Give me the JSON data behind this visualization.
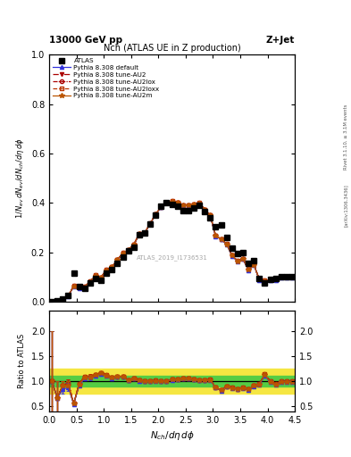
{
  "title": "Nch (ATLAS UE in Z production)",
  "top_left_label": "13000 GeV pp",
  "top_right_label": "Z+Jet",
  "right_label_main": "Rivet 3.1.10, ≥ 3.1M events",
  "right_label_arxiv": "[arXiv:1306.3436]",
  "watermark": "ATLAS_2019_I1736531",
  "xlabel": "$N_{ch}/d\\eta\\,d\\phi$",
  "ylabel_main": "$1/N_{ev}\\,dN_{ev}/dN_{ch}/d\\eta\\,d\\phi$",
  "ylabel_ratio": "Ratio to ATLAS",
  "atlas_x": [
    0.05,
    0.15,
    0.25,
    0.35,
    0.45,
    0.55,
    0.65,
    0.75,
    0.85,
    0.95,
    1.05,
    1.15,
    1.25,
    1.35,
    1.45,
    1.55,
    1.65,
    1.75,
    1.85,
    1.95,
    2.05,
    2.15,
    2.25,
    2.35,
    2.45,
    2.55,
    2.65,
    2.75,
    2.85,
    2.95,
    3.05,
    3.15,
    3.25,
    3.35,
    3.45,
    3.55,
    3.65,
    3.75,
    3.85,
    3.95,
    4.05,
    4.15,
    4.25,
    4.35,
    4.45
  ],
  "atlas_y": [
    0.001,
    0.003,
    0.012,
    0.025,
    0.115,
    0.06,
    0.055,
    0.075,
    0.095,
    0.085,
    0.115,
    0.13,
    0.155,
    0.18,
    0.205,
    0.22,
    0.27,
    0.28,
    0.315,
    0.35,
    0.385,
    0.4,
    0.395,
    0.385,
    0.37,
    0.37,
    0.38,
    0.39,
    0.365,
    0.34,
    0.305,
    0.31,
    0.26,
    0.215,
    0.195,
    0.2,
    0.155,
    0.165,
    0.095,
    0.075,
    0.09,
    0.095,
    0.1,
    0.1,
    0.1
  ],
  "atlas_yerr": [
    0.001,
    0.001,
    0.002,
    0.004,
    0.007,
    0.004,
    0.004,
    0.005,
    0.005,
    0.004,
    0.005,
    0.005,
    0.006,
    0.006,
    0.007,
    0.007,
    0.007,
    0.007,
    0.008,
    0.008,
    0.008,
    0.008,
    0.008,
    0.008,
    0.008,
    0.008,
    0.008,
    0.008,
    0.008,
    0.008,
    0.008,
    0.008,
    0.007,
    0.007,
    0.007,
    0.007,
    0.006,
    0.007,
    0.006,
    0.005,
    0.006,
    0.006,
    0.006,
    0.006,
    0.006
  ],
  "pd_x": [
    0.05,
    0.15,
    0.25,
    0.35,
    0.45,
    0.55,
    0.65,
    0.75,
    0.85,
    0.95,
    1.05,
    1.15,
    1.25,
    1.35,
    1.45,
    1.55,
    1.65,
    1.75,
    1.85,
    1.95,
    2.05,
    2.15,
    2.25,
    2.35,
    2.45,
    2.55,
    2.65,
    2.75,
    2.85,
    2.95,
    3.05,
    3.15,
    3.25,
    3.35,
    3.45,
    3.55,
    3.65,
    3.75,
    3.85,
    3.95,
    4.05,
    4.15,
    4.25,
    4.35,
    4.45
  ],
  "pd_y": [
    0.001,
    0.002,
    0.01,
    0.022,
    0.062,
    0.055,
    0.058,
    0.08,
    0.105,
    0.097,
    0.127,
    0.138,
    0.168,
    0.195,
    0.208,
    0.23,
    0.272,
    0.278,
    0.315,
    0.352,
    0.382,
    0.4,
    0.405,
    0.4,
    0.39,
    0.388,
    0.392,
    0.398,
    0.372,
    0.348,
    0.265,
    0.252,
    0.232,
    0.185,
    0.163,
    0.172,
    0.128,
    0.148,
    0.088,
    0.083,
    0.088,
    0.088,
    0.098,
    0.098,
    0.098
  ],
  "pd_yerr": [
    0.001,
    0.001,
    0.001,
    0.002,
    0.003,
    0.002,
    0.002,
    0.003,
    0.003,
    0.003,
    0.003,
    0.003,
    0.004,
    0.004,
    0.004,
    0.004,
    0.004,
    0.004,
    0.004,
    0.004,
    0.004,
    0.004,
    0.004,
    0.004,
    0.004,
    0.004,
    0.004,
    0.004,
    0.004,
    0.004,
    0.004,
    0.004,
    0.004,
    0.003,
    0.003,
    0.004,
    0.003,
    0.004,
    0.003,
    0.003,
    0.003,
    0.003,
    0.003,
    0.003,
    0.003
  ],
  "au2_x": [
    0.05,
    0.15,
    0.25,
    0.35,
    0.45,
    0.55,
    0.65,
    0.75,
    0.85,
    0.95,
    1.05,
    1.15,
    1.25,
    1.35,
    1.45,
    1.55,
    1.65,
    1.75,
    1.85,
    1.95,
    2.05,
    2.15,
    2.25,
    2.35,
    2.45,
    2.55,
    2.65,
    2.75,
    2.85,
    2.95,
    3.05,
    3.15,
    3.25,
    3.35,
    3.45,
    3.55,
    3.65,
    3.75,
    3.85,
    3.95,
    4.05,
    4.15,
    4.25,
    4.35,
    4.45
  ],
  "au2_y": [
    0.001,
    0.002,
    0.011,
    0.023,
    0.063,
    0.056,
    0.059,
    0.081,
    0.106,
    0.098,
    0.128,
    0.139,
    0.169,
    0.196,
    0.209,
    0.231,
    0.273,
    0.279,
    0.316,
    0.353,
    0.383,
    0.401,
    0.406,
    0.401,
    0.391,
    0.389,
    0.393,
    0.399,
    0.373,
    0.349,
    0.266,
    0.253,
    0.233,
    0.186,
    0.164,
    0.173,
    0.129,
    0.149,
    0.089,
    0.084,
    0.089,
    0.089,
    0.099,
    0.099,
    0.099
  ],
  "au2_yerr": [
    0.001,
    0.001,
    0.001,
    0.002,
    0.003,
    0.002,
    0.002,
    0.003,
    0.003,
    0.003,
    0.003,
    0.003,
    0.004,
    0.004,
    0.004,
    0.004,
    0.004,
    0.004,
    0.004,
    0.004,
    0.004,
    0.004,
    0.004,
    0.004,
    0.004,
    0.004,
    0.004,
    0.004,
    0.004,
    0.004,
    0.004,
    0.004,
    0.004,
    0.003,
    0.003,
    0.004,
    0.003,
    0.004,
    0.003,
    0.003,
    0.003,
    0.003,
    0.003,
    0.003,
    0.003
  ],
  "au2lox_x": [
    0.05,
    0.15,
    0.25,
    0.35,
    0.45,
    0.55,
    0.65,
    0.75,
    0.85,
    0.95,
    1.05,
    1.15,
    1.25,
    1.35,
    1.45,
    1.55,
    1.65,
    1.75,
    1.85,
    1.95,
    2.05,
    2.15,
    2.25,
    2.35,
    2.45,
    2.55,
    2.65,
    2.75,
    2.85,
    2.95,
    3.05,
    3.15,
    3.25,
    3.35,
    3.45,
    3.55,
    3.65,
    3.75,
    3.85,
    3.95,
    4.05,
    4.15,
    4.25,
    4.35,
    4.45
  ],
  "au2lox_y": [
    0.001,
    0.002,
    0.011,
    0.024,
    0.064,
    0.057,
    0.06,
    0.082,
    0.107,
    0.099,
    0.129,
    0.14,
    0.17,
    0.197,
    0.21,
    0.232,
    0.274,
    0.28,
    0.317,
    0.354,
    0.384,
    0.402,
    0.407,
    0.402,
    0.392,
    0.39,
    0.394,
    0.4,
    0.374,
    0.35,
    0.267,
    0.254,
    0.234,
    0.187,
    0.165,
    0.174,
    0.13,
    0.15,
    0.09,
    0.085,
    0.09,
    0.09,
    0.1,
    0.1,
    0.1
  ],
  "au2lox_yerr": [
    0.001,
    0.001,
    0.001,
    0.002,
    0.003,
    0.002,
    0.002,
    0.003,
    0.003,
    0.003,
    0.003,
    0.003,
    0.004,
    0.004,
    0.004,
    0.004,
    0.004,
    0.004,
    0.004,
    0.004,
    0.004,
    0.004,
    0.004,
    0.004,
    0.004,
    0.004,
    0.004,
    0.004,
    0.004,
    0.004,
    0.004,
    0.004,
    0.004,
    0.003,
    0.003,
    0.004,
    0.003,
    0.004,
    0.003,
    0.003,
    0.003,
    0.003,
    0.003,
    0.003,
    0.003
  ],
  "au2loxx_x": [
    0.05,
    0.15,
    0.25,
    0.35,
    0.45,
    0.55,
    0.65,
    0.75,
    0.85,
    0.95,
    1.05,
    1.15,
    1.25,
    1.35,
    1.45,
    1.55,
    1.65,
    1.75,
    1.85,
    1.95,
    2.05,
    2.15,
    2.25,
    2.35,
    2.45,
    2.55,
    2.65,
    2.75,
    2.85,
    2.95,
    3.05,
    3.15,
    3.25,
    3.35,
    3.45,
    3.55,
    3.65,
    3.75,
    3.85,
    3.95,
    4.05,
    4.15,
    4.25,
    4.35,
    4.45
  ],
  "au2loxx_y": [
    0.001,
    0.002,
    0.011,
    0.024,
    0.064,
    0.057,
    0.06,
    0.082,
    0.107,
    0.099,
    0.129,
    0.14,
    0.17,
    0.197,
    0.21,
    0.232,
    0.274,
    0.28,
    0.317,
    0.354,
    0.384,
    0.402,
    0.407,
    0.402,
    0.392,
    0.39,
    0.394,
    0.4,
    0.374,
    0.35,
    0.267,
    0.254,
    0.234,
    0.187,
    0.165,
    0.174,
    0.13,
    0.15,
    0.09,
    0.085,
    0.09,
    0.09,
    0.1,
    0.1,
    0.1
  ],
  "au2loxx_yerr": [
    0.001,
    0.001,
    0.001,
    0.002,
    0.003,
    0.002,
    0.002,
    0.003,
    0.003,
    0.003,
    0.003,
    0.003,
    0.004,
    0.004,
    0.004,
    0.004,
    0.004,
    0.004,
    0.004,
    0.004,
    0.004,
    0.004,
    0.004,
    0.004,
    0.004,
    0.004,
    0.004,
    0.004,
    0.004,
    0.004,
    0.004,
    0.004,
    0.004,
    0.003,
    0.003,
    0.004,
    0.003,
    0.004,
    0.003,
    0.003,
    0.003,
    0.003,
    0.003,
    0.003,
    0.003
  ],
  "au2m_x": [
    0.05,
    0.15,
    0.25,
    0.35,
    0.45,
    0.55,
    0.65,
    0.75,
    0.85,
    0.95,
    1.05,
    1.15,
    1.25,
    1.35,
    1.45,
    1.55,
    1.65,
    1.75,
    1.85,
    1.95,
    2.05,
    2.15,
    2.25,
    2.35,
    2.45,
    2.55,
    2.65,
    2.75,
    2.85,
    2.95,
    3.05,
    3.15,
    3.25,
    3.35,
    3.45,
    3.55,
    3.65,
    3.75,
    3.85,
    3.95,
    4.05,
    4.15,
    4.25,
    4.35,
    4.45
  ],
  "au2m_y": [
    0.001,
    0.002,
    0.011,
    0.023,
    0.063,
    0.056,
    0.059,
    0.081,
    0.106,
    0.098,
    0.128,
    0.139,
    0.169,
    0.196,
    0.209,
    0.231,
    0.273,
    0.279,
    0.316,
    0.353,
    0.383,
    0.401,
    0.406,
    0.401,
    0.391,
    0.389,
    0.393,
    0.399,
    0.373,
    0.349,
    0.266,
    0.253,
    0.233,
    0.186,
    0.164,
    0.173,
    0.129,
    0.149,
    0.089,
    0.084,
    0.089,
    0.089,
    0.099,
    0.099,
    0.099
  ],
  "au2m_yerr": [
    0.001,
    0.001,
    0.001,
    0.002,
    0.003,
    0.002,
    0.002,
    0.003,
    0.003,
    0.003,
    0.003,
    0.003,
    0.004,
    0.004,
    0.004,
    0.004,
    0.004,
    0.004,
    0.004,
    0.004,
    0.004,
    0.004,
    0.004,
    0.004,
    0.004,
    0.004,
    0.004,
    0.004,
    0.004,
    0.004,
    0.004,
    0.004,
    0.004,
    0.003,
    0.003,
    0.004,
    0.003,
    0.004,
    0.003,
    0.003,
    0.003,
    0.003,
    0.003,
    0.003,
    0.003
  ],
  "color_default": "#3333dd",
  "color_au2": "#aa0000",
  "color_au2lox": "#aa0000",
  "color_au2loxx": "#bb3300",
  "color_au2m": "#bb5500",
  "ylim_main": [
    0,
    1.0
  ],
  "ylim_ratio": [
    0.4,
    2.4
  ],
  "xlim": [
    0,
    4.5
  ],
  "bin_edges": [
    0.0,
    0.1,
    0.2,
    0.3,
    0.4,
    0.5,
    0.6,
    0.7,
    0.8,
    0.9,
    1.0,
    1.1,
    1.2,
    1.3,
    1.4,
    1.5,
    1.6,
    1.7,
    1.8,
    1.9,
    2.0,
    2.1,
    2.2,
    2.3,
    2.4,
    2.5,
    2.6,
    2.7,
    2.8,
    2.9,
    3.0,
    3.1,
    3.2,
    3.3,
    3.4,
    3.5,
    3.6,
    3.7,
    3.8,
    3.9,
    4.0,
    4.1,
    4.2,
    4.3,
    4.4,
    4.5
  ],
  "ratio_yellow_lo": 0.75,
  "ratio_yellow_hi": 1.25,
  "ratio_green_lo": 0.9,
  "ratio_green_hi": 1.1
}
